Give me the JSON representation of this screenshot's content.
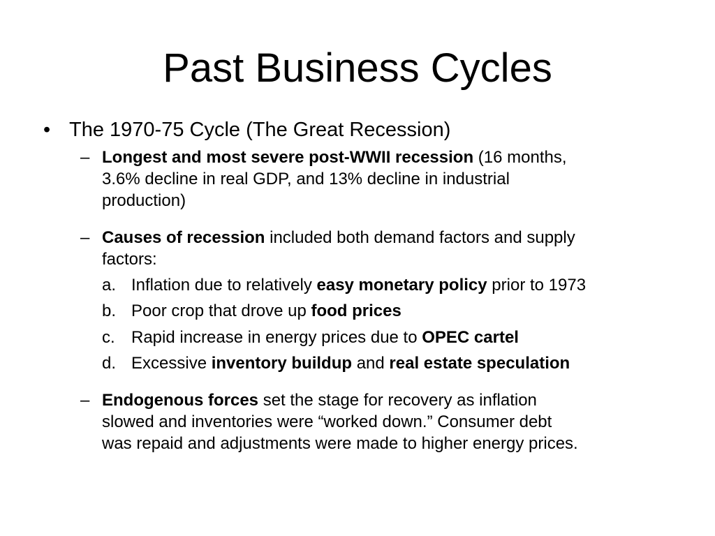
{
  "slide": {
    "title": "Past Business Cycles",
    "bullet": {
      "marker": "•",
      "text": "The 1970-75 Cycle (The Great Recession)"
    },
    "dash": "–",
    "sub1": {
      "bold": "Longest and most severe post-WWII recession",
      "line1_rest": " (16 months,",
      "line2": "3.6% decline in real GDP, and 13% decline in industrial",
      "line3": "production)"
    },
    "sub2": {
      "bold": "Causes of recession",
      "line1_rest": " included both demand factors and supply",
      "line2": "factors:"
    },
    "items": {
      "a": {
        "letter": "a.",
        "pre": "Inflation due to relatively ",
        "bold": "easy monetary policy",
        "post": " prior to 1973"
      },
      "b": {
        "letter": "b.",
        "pre": "Poor crop that drove up ",
        "bold": "food prices"
      },
      "c": {
        "letter": "c.",
        "pre": "Rapid increase in energy prices due to ",
        "bold": "OPEC cartel"
      },
      "d": {
        "letter": "d.",
        "pre": "Excessive ",
        "bold1": "inventory buildup",
        "mid": " and ",
        "bold2": "real estate speculation"
      }
    },
    "sub3": {
      "bold": "Endogenous forces",
      "line1_rest": " set the stage for recovery as inflation",
      "line2": "slowed and inventories were “worked down.”  Consumer debt",
      "line3": "was repaid and adjustments were made to higher energy prices."
    }
  }
}
